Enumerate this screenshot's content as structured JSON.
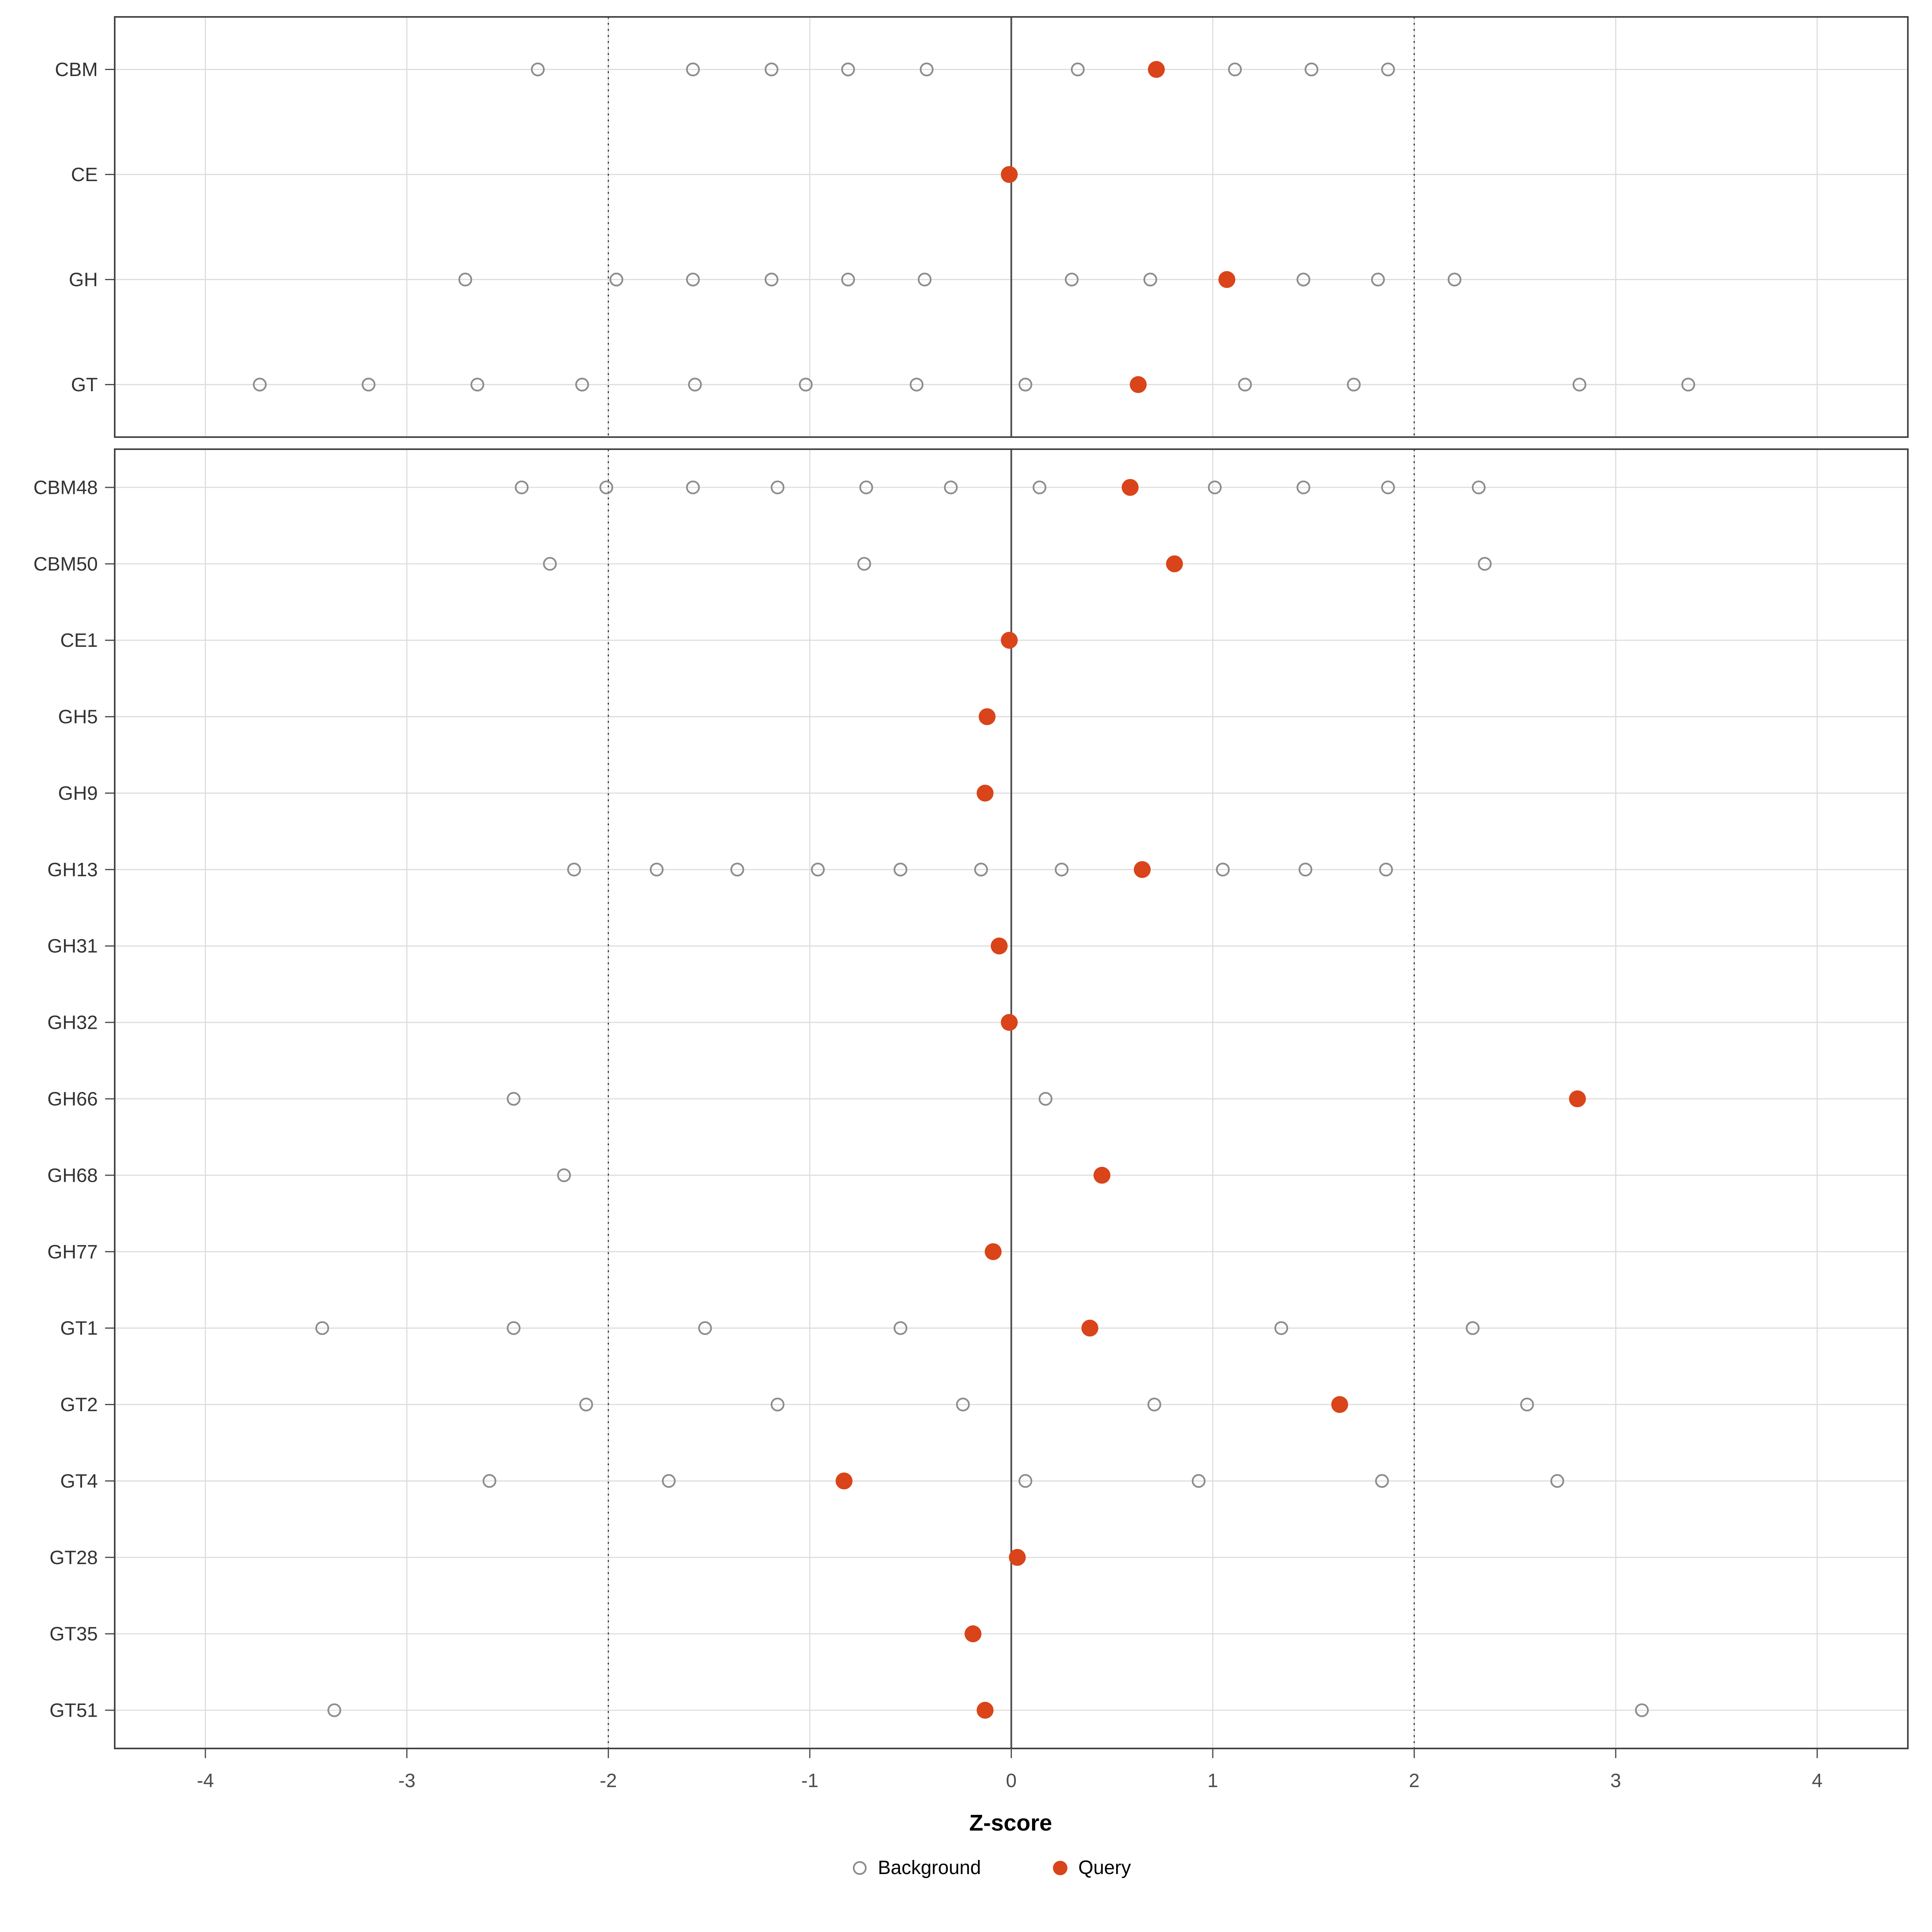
{
  "chart_data": {
    "type": "scatter",
    "title": "",
    "xlabel": "Z-score",
    "axis": {
      "xmin": -4.45,
      "xmax": 4.45,
      "ticks": [
        -4,
        -3,
        -2,
        -1,
        0,
        1,
        2,
        3,
        4
      ],
      "tick_labels": [
        "-4",
        "-3",
        "-2",
        "-1",
        "0",
        "1",
        "2",
        "3",
        "4"
      ]
    },
    "reference_lines": {
      "solid": [
        0
      ],
      "dotted": [
        -2,
        2
      ]
    },
    "colors": {
      "query": "#D9441A",
      "background_stroke": "#8C8C8C",
      "grid": "#DCDCDC",
      "panel_border": "#404040",
      "zero_line": "#4D4D4D",
      "ref_line": "#333333"
    },
    "legend": [
      {
        "name": "Background",
        "type": "open"
      },
      {
        "name": "Query",
        "type": "filled"
      }
    ],
    "panels": [
      {
        "rows": [
          {
            "label": "CBM",
            "background": [
              -2.35,
              -1.58,
              -1.19,
              -0.81,
              -0.42,
              0.33,
              1.11,
              1.49,
              1.87
            ],
            "query": 0.72
          },
          {
            "label": "CE",
            "background": [],
            "query": -0.01
          },
          {
            "label": "GH",
            "background": [
              -2.71,
              -1.96,
              -1.58,
              -1.19,
              -0.81,
              -0.43,
              0.3,
              0.69,
              1.45,
              1.82,
              2.2
            ],
            "query": 1.07
          },
          {
            "label": "GT",
            "background": [
              -3.73,
              -3.19,
              -2.65,
              -2.13,
              -1.57,
              -1.02,
              -0.47,
              0.07,
              1.16,
              1.7,
              2.82,
              3.36
            ],
            "query": 0.63
          }
        ]
      },
      {
        "rows": [
          {
            "label": "CBM48",
            "background": [
              -2.43,
              -2.01,
              -1.58,
              -1.16,
              -0.72,
              -0.3,
              0.14,
              1.01,
              1.45,
              1.87,
              2.32
            ],
            "query": 0.59
          },
          {
            "label": "CBM50",
            "background": [
              -2.29,
              -0.73,
              2.35
            ],
            "query": 0.81
          },
          {
            "label": "CE1",
            "background": [],
            "query": -0.01
          },
          {
            "label": "GH5",
            "background": [],
            "query": -0.12
          },
          {
            "label": "GH9",
            "background": [],
            "query": -0.13
          },
          {
            "label": "GH13",
            "background": [
              -2.17,
              -1.76,
              -1.36,
              -0.96,
              -0.55,
              -0.15,
              0.25,
              1.05,
              1.46,
              1.86
            ],
            "query": 0.65
          },
          {
            "label": "GH31",
            "background": [],
            "query": -0.06
          },
          {
            "label": "GH32",
            "background": [],
            "query": -0.01
          },
          {
            "label": "GH66",
            "background": [
              -2.47,
              0.17
            ],
            "query": 2.81
          },
          {
            "label": "GH68",
            "background": [
              -2.22
            ],
            "query": 0.45
          },
          {
            "label": "GH77",
            "background": [],
            "query": -0.09
          },
          {
            "label": "GT1",
            "background": [
              -3.42,
              -2.47,
              -1.52,
              -0.55,
              1.34,
              2.29
            ],
            "query": 0.39
          },
          {
            "label": "GT2",
            "background": [
              -2.11,
              -1.16,
              -0.24,
              0.71,
              2.56
            ],
            "query": 1.63
          },
          {
            "label": "GT4",
            "background": [
              -2.59,
              -1.7,
              0.07,
              0.93,
              1.84,
              2.71
            ],
            "query": -0.83
          },
          {
            "label": "GT28",
            "background": [],
            "query": 0.03
          },
          {
            "label": "GT35",
            "background": [],
            "query": -0.19
          },
          {
            "label": "GT51",
            "background": [
              -3.36,
              3.13
            ],
            "query": -0.13
          }
        ]
      }
    ]
  }
}
